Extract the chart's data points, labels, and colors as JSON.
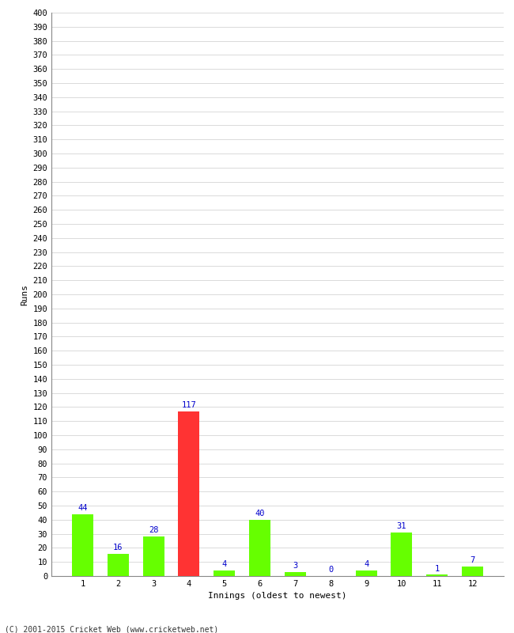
{
  "xlabel": "Innings (oldest to newest)",
  "ylabel": "Runs",
  "categories": [
    "1",
    "2",
    "3",
    "4",
    "5",
    "6",
    "7",
    "8",
    "9",
    "10",
    "11",
    "12"
  ],
  "values": [
    44,
    16,
    28,
    117,
    4,
    40,
    3,
    0,
    4,
    31,
    1,
    7
  ],
  "bar_colors": [
    "#66ff00",
    "#66ff00",
    "#66ff00",
    "#ff3333",
    "#66ff00",
    "#66ff00",
    "#66ff00",
    "#66ff00",
    "#66ff00",
    "#66ff00",
    "#66ff00",
    "#66ff00"
  ],
  "ylim": [
    0,
    400
  ],
  "ytick_step": 10,
  "label_color": "#0000cc",
  "label_fontsize": 7.5,
  "axis_label_fontsize": 8,
  "tick_fontsize": 7.5,
  "footer": "(C) 2001-2015 Cricket Web (www.cricketweb.net)",
  "background_color": "#ffffff",
  "grid_color": "#cccccc",
  "border_color": "#888888"
}
